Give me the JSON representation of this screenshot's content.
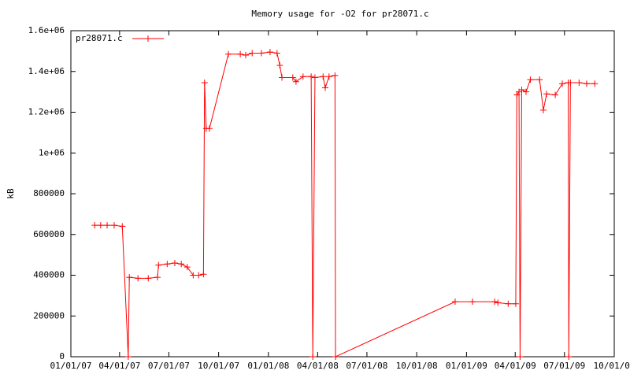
{
  "chart_data": {
    "type": "line",
    "title": "Memory usage for -O2 for pr28071.c",
    "y_label": "kB",
    "legend": "top-left",
    "xlim": [
      "2007-01-01",
      "2009-10-01"
    ],
    "xticks": [
      {
        "value": "2007-01-01",
        "label": "01/01/07"
      },
      {
        "value": "2007-04-01",
        "label": "04/01/07"
      },
      {
        "value": "2007-07-01",
        "label": "07/01/07"
      },
      {
        "value": "2007-10-01",
        "label": "10/01/07"
      },
      {
        "value": "2008-01-01",
        "label": "01/01/08"
      },
      {
        "value": "2008-04-01",
        "label": "04/01/08"
      },
      {
        "value": "2008-07-01",
        "label": "07/01/08"
      },
      {
        "value": "2008-10-01",
        "label": "10/01/08"
      },
      {
        "value": "2009-01-01",
        "label": "01/01/09"
      },
      {
        "value": "2009-04-01",
        "label": "04/01/09"
      },
      {
        "value": "2009-07-01",
        "label": "07/01/09"
      },
      {
        "value": "2009-10-01",
        "label": "10/01/09"
      }
    ],
    "ylim": [
      0,
      1600000
    ],
    "yticks": [
      0,
      200000,
      400000,
      600000,
      800000,
      {
        "value": 1000000,
        "label": "1e+06"
      },
      {
        "value": 1200000,
        "label": "1.2e+06"
      },
      {
        "value": 1400000,
        "label": "1.4e+06"
      },
      {
        "value": 1600000,
        "label": "1.6e+06"
      }
    ],
    "x": [
      "2007-02-14",
      "2007-02-25",
      "2007-03-09",
      "2007-03-22",
      "2007-04-06",
      "2007-04-17",
      "2007-04-19",
      "2007-05-05",
      "2007-05-24",
      "2007-06-10",
      "2007-06-12",
      "2007-06-28",
      "2007-07-12",
      "2007-07-24",
      "2007-08-04",
      "2007-08-15",
      "2007-08-25",
      "2007-09-03",
      "2007-09-05",
      "2007-09-08",
      "2007-09-14",
      "2007-10-19",
      "2007-11-10",
      "2007-11-20",
      "2007-12-02",
      "2007-12-19",
      "2008-01-04",
      "2008-01-17",
      "2008-01-22",
      "2008-01-26",
      "2008-02-15",
      "2008-02-21",
      "2008-03-05",
      "2008-03-20",
      "2008-03-23",
      "2008-03-27",
      "2008-04-11",
      "2008-04-15",
      "2008-04-22",
      "2008-05-03",
      "2008-05-04",
      "2008-12-11",
      "2009-01-12",
      "2009-02-22",
      "2009-02-28",
      "2009-03-19",
      "2009-04-02",
      "2009-04-04",
      "2009-04-08",
      "2009-04-10",
      "2009-04-13",
      "2009-04-21",
      "2009-04-29",
      "2009-05-16",
      "2009-05-23",
      "2009-05-29",
      "2009-06-14",
      "2009-06-27",
      "2009-07-08",
      "2009-07-09",
      "2009-07-12",
      "2009-07-28",
      "2009-08-11",
      "2009-08-26"
    ],
    "series": [
      {
        "name": "pr28071.c",
        "color": "#ff0000",
        "values": [
          645000,
          645000,
          645000,
          645000,
          640000,
          0,
          390000,
          385000,
          385000,
          390000,
          450000,
          455000,
          460000,
          455000,
          440000,
          400000,
          400000,
          405000,
          1345000,
          1120000,
          1120000,
          1485000,
          1485000,
          1480000,
          1490000,
          1490000,
          1495000,
          1490000,
          1430000,
          1370000,
          1370000,
          1350000,
          1375000,
          1375000,
          0,
          1370000,
          1375000,
          1320000,
          1375000,
          1380000,
          0,
          270000,
          270000,
          270000,
          265000,
          260000,
          260000,
          1285000,
          1300000,
          0,
          1310000,
          1300000,
          1360000,
          1360000,
          1210000,
          1290000,
          1285000,
          1340000,
          1345000,
          0,
          1345000,
          1345000,
          1340000,
          1340000
        ]
      }
    ]
  }
}
